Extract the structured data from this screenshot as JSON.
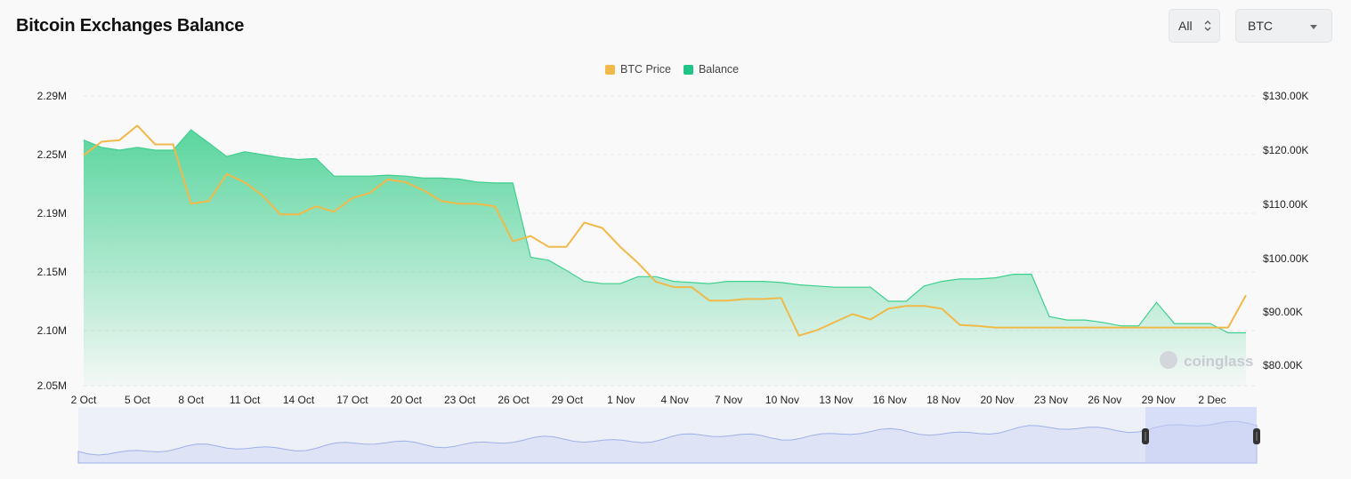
{
  "header": {
    "title": "Bitcoin Exchanges Balance"
  },
  "controls": {
    "range_label": "All",
    "coin_label": "BTC"
  },
  "watermark": "coinglass",
  "colors": {
    "price": "#f0b94a",
    "balance": "#3ecf8e",
    "balance_line": "#3ecf8e",
    "navigator": "#dfe3f6",
    "navigator_line": "#9db0e8"
  },
  "chart_data": {
    "type": "line",
    "title": "Bitcoin Exchanges Balance",
    "legend": [
      "BTC Price",
      "Balance"
    ],
    "legend_position": "top-center",
    "x_ticks": [
      "2 Oct",
      "5 Oct",
      "8 Oct",
      "11 Oct",
      "14 Oct",
      "17 Oct",
      "20 Oct",
      "23 Oct",
      "26 Oct",
      "29 Oct",
      "1 Nov",
      "4 Nov",
      "7 Nov",
      "10 Nov",
      "13 Nov",
      "16 Nov",
      "18 Nov",
      "20 Nov",
      "23 Nov",
      "26 Nov",
      "29 Nov",
      "2 Dec"
    ],
    "y_left": {
      "ticks": [
        "2.29M",
        "2.25M",
        "2.19M",
        "2.15M",
        "2.10M",
        "2.05M"
      ],
      "range": [
        2.05,
        2.29
      ],
      "unit": "M"
    },
    "y_right": {
      "ticks": [
        "$130.00K",
        "$120.00K",
        "$110.00K",
        "$100.00K",
        "$90.00K",
        "$80.00K"
      ],
      "range": [
        80,
        130
      ],
      "unit": "K"
    },
    "grid": true,
    "series": [
      {
        "name": "Balance",
        "axis": "left",
        "x": [
          0,
          1,
          2,
          3,
          4,
          5,
          6,
          7,
          8,
          9,
          10,
          11,
          12,
          13,
          14,
          15,
          16,
          17,
          18,
          19,
          20,
          21,
          22,
          23,
          24,
          25,
          26,
          27,
          28,
          29,
          30,
          31,
          32,
          33,
          34,
          35,
          36,
          37,
          38,
          39,
          40,
          41,
          42,
          43,
          44,
          45,
          46,
          47,
          48,
          49,
          50,
          51,
          52,
          53,
          54,
          55,
          56,
          57,
          58,
          59,
          60,
          61,
          62,
          63,
          64,
          65
        ],
        "values": [
          2.26,
          2.255,
          2.253,
          2.255,
          2.253,
          2.253,
          2.267,
          2.258,
          2.248,
          2.252,
          2.25,
          2.247,
          2.245,
          2.246,
          2.228,
          2.228,
          2.228,
          2.229,
          2.228,
          2.226,
          2.226,
          2.225,
          2.222,
          2.221,
          2.221,
          2.16,
          2.158,
          2.151,
          2.142,
          2.14,
          2.14,
          2.146,
          2.146,
          2.142,
          2.141,
          2.14,
          2.142,
          2.142,
          2.142,
          2.141,
          2.139,
          2.138,
          2.137,
          2.137,
          2.137,
          2.125,
          2.125,
          2.138,
          2.142,
          2.144,
          2.144,
          2.145,
          2.148,
          2.148,
          2.112,
          2.109,
          2.109,
          2.107,
          2.104,
          2.104,
          2.124,
          2.106,
          2.106,
          2.106,
          2.098,
          2.098
        ]
      },
      {
        "name": "BTC Price",
        "axis": "right",
        "x": [
          0,
          1,
          2,
          3,
          4,
          5,
          6,
          7,
          8,
          9,
          10,
          11,
          12,
          13,
          14,
          15,
          16,
          17,
          18,
          19,
          20,
          21,
          22,
          23,
          24,
          25,
          26,
          27,
          28,
          29,
          30,
          31,
          32,
          33,
          34,
          35,
          36,
          37,
          38,
          39,
          40,
          41,
          42,
          43,
          44,
          45,
          46,
          47,
          48,
          49,
          50,
          51,
          52,
          53,
          54,
          55,
          56,
          57,
          58,
          59,
          60,
          61,
          62,
          63,
          64,
          65
        ],
        "values": [
          119,
          121.5,
          121.8,
          124.5,
          121,
          121,
          110,
          110.5,
          115.5,
          114,
          111.5,
          108,
          108,
          109.5,
          108.5,
          111,
          112,
          114.5,
          114,
          112.5,
          110.5,
          110,
          110,
          109.5,
          103,
          104,
          102,
          102,
          106.5,
          105.5,
          102,
          99,
          95.5,
          94.5,
          94.5,
          92,
          92,
          92.3,
          92.3,
          92.5,
          85.5,
          86.5,
          88,
          89.5,
          88.5,
          90.5,
          91,
          91,
          90.5,
          87.5,
          87.3,
          87,
          87,
          87,
          87,
          87,
          87,
          87,
          87,
          87,
          87,
          87,
          87,
          87,
          87,
          93
        ]
      }
    ]
  }
}
